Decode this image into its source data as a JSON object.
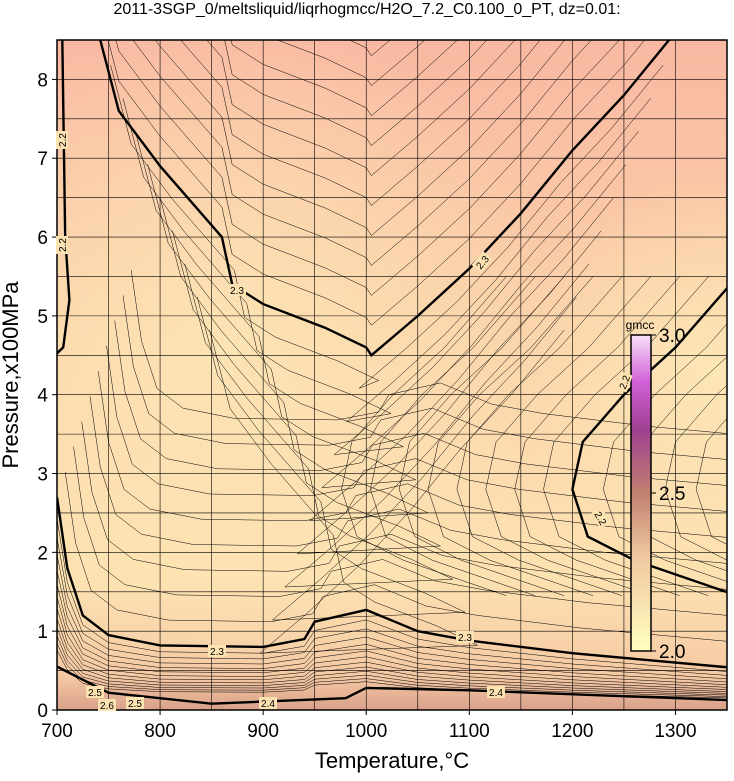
{
  "chart_data": {
    "type": "contour",
    "title": "2011-3SGP_0/meltsliquid/liqrhogmcc/H2O_7.2_C0.100_0_PT, dz=0.01:",
    "x_label": "Temperature,°C",
    "y_label": "Pressure,x100MPa",
    "xlim": [
      700,
      1350
    ],
    "ylim": [
      0,
      8.5
    ],
    "xticks": [
      700,
      800,
      900,
      1000,
      1100,
      1200,
      1300
    ],
    "yticks": [
      0,
      1,
      2,
      3,
      4,
      5,
      6,
      7,
      8
    ],
    "xgrid": [
      700,
      750,
      800,
      850,
      900,
      950,
      1000,
      1050,
      1100,
      1150,
      1200,
      1250,
      1300,
      1350
    ],
    "ygrid": [
      0.5,
      1,
      1.5,
      2,
      2.5,
      3,
      3.5,
      4,
      4.5,
      5,
      5.5,
      6,
      6.5,
      7,
      7.5,
      8
    ],
    "contour_labels": [
      2.2,
      2.2,
      2.3,
      2.3,
      2.2,
      2.2,
      2.3,
      2.3,
      2.4,
      2.4,
      2.5,
      2.5,
      2.6
    ],
    "colorbar": {
      "label": "gmcc",
      "lim": [
        2.0,
        3.0
      ],
      "ticks": [
        {
          "value": 2.0,
          "label": "2.0"
        },
        {
          "value": 2.5,
          "label": "2.5"
        },
        {
          "value": 3.0,
          "label": "3.0"
        }
      ]
    }
  }
}
